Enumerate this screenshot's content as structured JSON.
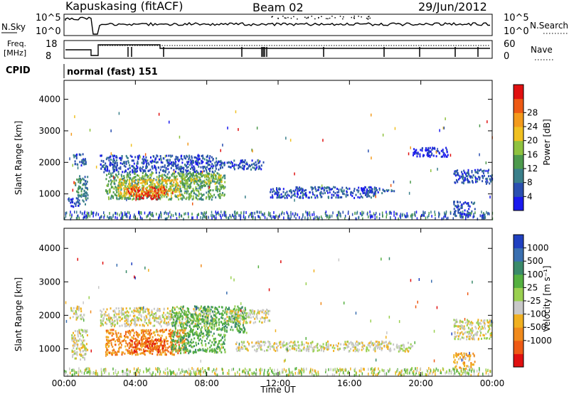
{
  "header": {
    "station": "Kapuskasing (fitACF)",
    "beam": "Beam 02",
    "date": "29/Jun/2012"
  },
  "panels": {
    "nsky_label": "N.Sky",
    "nsky_ticks": [
      "10^5",
      "10^0"
    ],
    "nsearch_label": "N.Search",
    "nsearch_ticks": [
      "10^5",
      "10^0"
    ],
    "freq_label": "Freq.",
    "freq_unit": "[MHz]",
    "freq_ticks": [
      "18",
      "8"
    ],
    "nave_label": "Nave",
    "nave_ticks": [
      "60",
      "0"
    ],
    "cpid_label": "CPID",
    "cpid_value": "normal (fast) 151"
  },
  "chart_data": [
    {
      "type": "heatmap",
      "name": "power",
      "ylabel": "Slant Range [km]",
      "xlabel": "Time UT",
      "x_ticks": [
        "00:00",
        "04:00",
        "08:00",
        "12:00",
        "16:00",
        "20:00",
        "00:00"
      ],
      "y_ticks": [
        "1000",
        "2000",
        "3000",
        "4000"
      ],
      "xlim_hours": [
        0,
        24
      ],
      "ylim_km": [
        180,
        4600
      ],
      "colorbar": {
        "label": "Power [dB]",
        "ticks": [
          "4",
          "8",
          "12",
          "16",
          "20",
          "24",
          "28"
        ],
        "colors": [
          "#1a1aee",
          "#2a4fb0",
          "#3a7f8a",
          "#4d9a4d",
          "#8fc23f",
          "#f0c020",
          "#f39a1c",
          "#ee5a14",
          "#e01010"
        ]
      },
      "regions": [
        {
          "t0": 0.6,
          "t1": 1.3,
          "r0": 700,
          "r1": 1600,
          "level": 2
        },
        {
          "t0": 0.5,
          "t1": 1.2,
          "r0": 1900,
          "r1": 2300,
          "level": 1
        },
        {
          "t0": 0.2,
          "t1": 0.8,
          "r0": 600,
          "r1": 900,
          "level": 1
        },
        {
          "t0": 2.0,
          "t1": 8.5,
          "r0": 1700,
          "r1": 2250,
          "level": 1
        },
        {
          "t0": 8.5,
          "t1": 11.2,
          "r0": 1800,
          "r1": 2100,
          "level": 1
        },
        {
          "t0": 2.3,
          "t1": 9.0,
          "r0": 850,
          "r1": 1700,
          "level": 3
        },
        {
          "t0": 3.0,
          "t1": 6.5,
          "r0": 950,
          "r1": 1500,
          "level": 5
        },
        {
          "t0": 3.5,
          "t1": 5.8,
          "r0": 1000,
          "r1": 1250,
          "level": 7
        },
        {
          "t0": 4.0,
          "t1": 5.3,
          "r0": 850,
          "r1": 1050,
          "level": 8
        },
        {
          "t0": 6.5,
          "t1": 8.8,
          "r0": 1350,
          "r1": 1650,
          "level": 4
        },
        {
          "t0": 11.5,
          "t1": 17.5,
          "r0": 900,
          "r1": 1250,
          "level": 1
        },
        {
          "t0": 16.5,
          "t1": 18.5,
          "r0": 1050,
          "r1": 1200,
          "level": 1
        },
        {
          "t0": 21.8,
          "t1": 24.0,
          "r0": 1350,
          "r1": 1800,
          "level": 1
        },
        {
          "t0": 21.8,
          "t1": 23.0,
          "r0": 300,
          "r1": 800,
          "level": 1
        },
        {
          "t0": 19.5,
          "t1": 21.5,
          "r0": 2200,
          "r1": 2500,
          "level": 0
        }
      ]
    },
    {
      "type": "heatmap",
      "name": "velocity",
      "ylabel": "Slant Range [km]",
      "xlabel": "Time UT",
      "x_ticks": [
        "00:00",
        "04:00",
        "08:00",
        "12:00",
        "16:00",
        "20:00",
        "00:00"
      ],
      "y_ticks": [
        "1000",
        "2000",
        "3000",
        "4000"
      ],
      "xlim_hours": [
        0,
        24
      ],
      "ylim_km": [
        180,
        4600
      ],
      "colorbar": {
        "label": "Velocity [m s⁻¹]",
        "ticks": [
          "1000",
          "500",
          "100",
          "25",
          "-25",
          "-100",
          "-500",
          "-1000"
        ],
        "colors": [
          "#2040c0",
          "#3a6fb0",
          "#3a8a6a",
          "#55b040",
          "#9ad050",
          "#c8c8c8",
          "#f0b020",
          "#f08a1c",
          "#ee5a14",
          "#e01010"
        ]
      },
      "regions": [
        {
          "t0": 0.4,
          "t1": 1.3,
          "r0": 700,
          "r1": 1600,
          "level": 5
        },
        {
          "t0": 0.3,
          "t1": 1.1,
          "r0": 1900,
          "r1": 2300,
          "level": 5
        },
        {
          "t0": 2.0,
          "t1": 8.5,
          "r0": 1700,
          "r1": 2250,
          "level": 5
        },
        {
          "t0": 6.0,
          "t1": 10.2,
          "r0": 1500,
          "r1": 2300,
          "level": 3
        },
        {
          "t0": 2.3,
          "t1": 6.8,
          "r0": 850,
          "r1": 1600,
          "level": 7
        },
        {
          "t0": 3.5,
          "t1": 5.6,
          "r0": 900,
          "r1": 1300,
          "level": 8
        },
        {
          "t0": 6.0,
          "t1": 9.0,
          "r0": 900,
          "r1": 1500,
          "level": 3
        },
        {
          "t0": 9.5,
          "t1": 19.5,
          "r0": 950,
          "r1": 1250,
          "level": 5
        },
        {
          "t0": 9.0,
          "t1": 11.5,
          "r0": 1800,
          "r1": 2200,
          "level": 5
        },
        {
          "t0": 21.8,
          "t1": 24.0,
          "r0": 1300,
          "r1": 1900,
          "level": 5
        },
        {
          "t0": 21.8,
          "t1": 23.0,
          "r0": 400,
          "r1": 900,
          "level": 6
        }
      ]
    }
  ]
}
